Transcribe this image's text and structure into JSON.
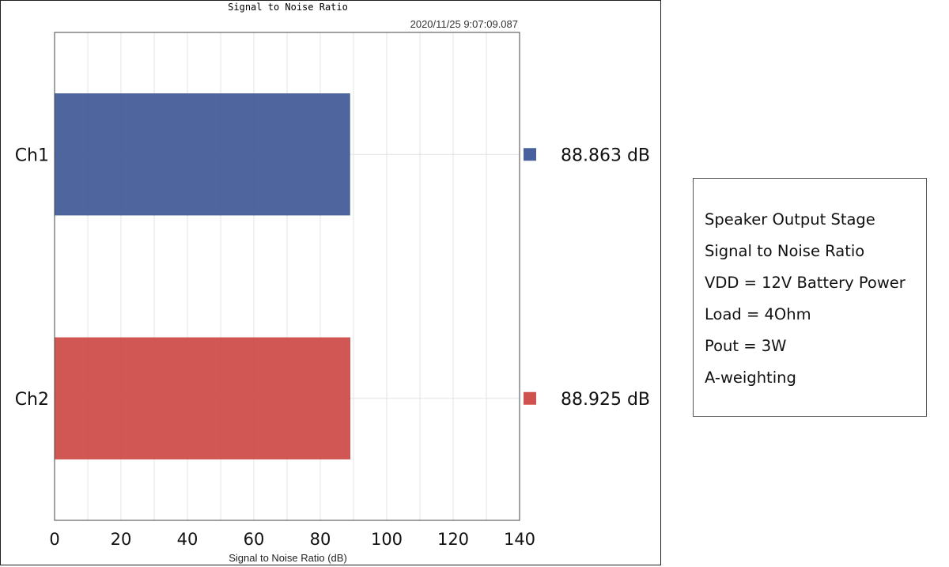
{
  "chart_data": {
    "type": "bar",
    "orientation": "horizontal",
    "title": "Signal to Noise Ratio",
    "timestamp": "2020/11/25 9:07:09.087",
    "xlabel": "Signal to Noise Ratio (dB)",
    "ylabel": "",
    "xlim": [
      0,
      140
    ],
    "x_ticks": [
      "0",
      "20",
      "40",
      "60",
      "80",
      "100",
      "120",
      "140"
    ],
    "grid": true,
    "categories": [
      "Ch1",
      "Ch2"
    ],
    "values": [
      88.863,
      88.925
    ],
    "value_labels": [
      "88.863  dB",
      "88.925  dB"
    ],
    "colors": [
      "#48609b",
      "#d0524f"
    ]
  },
  "info_box": {
    "lines": [
      "Speaker Output Stage",
      "Signal to Noise Ratio",
      "VDD = 12V Battery Power",
      "Load = 4Ohm",
      "Pout = 3W",
      "A-weighting"
    ]
  }
}
